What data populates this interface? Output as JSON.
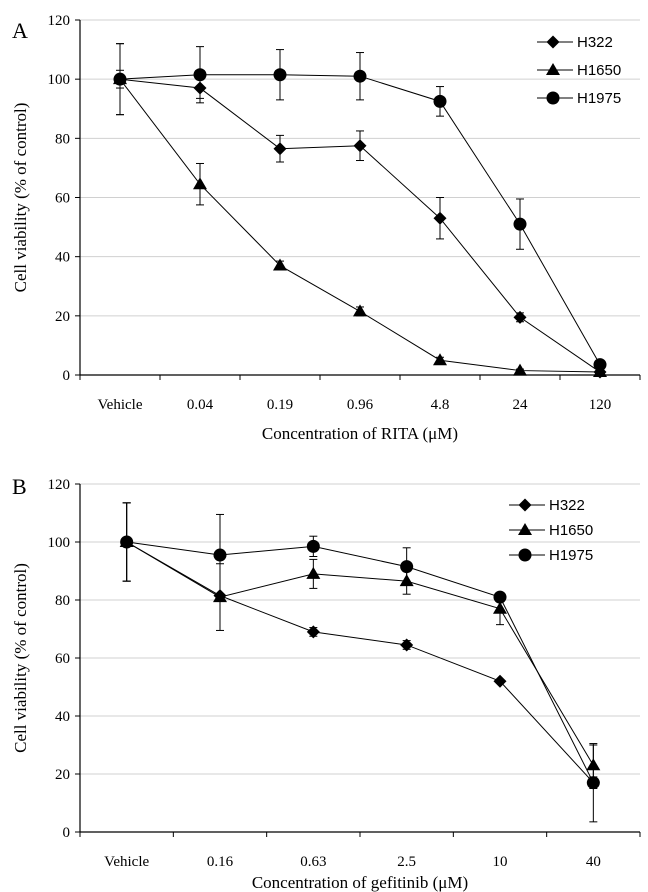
{
  "chart_data": [
    {
      "panel": "A",
      "type": "line",
      "categories": [
        "Vehicle",
        "0.04",
        "0.19",
        "0.96",
        "4.8",
        "24",
        "120"
      ],
      "xlabel": "Concentration of RITA (μM)",
      "ylabel": "Cell viability (% of control)",
      "ylim": [
        0,
        120
      ],
      "yticks": [
        0,
        20,
        40,
        60,
        80,
        100,
        120
      ],
      "grid": "horizontal",
      "legend_position": "top-right",
      "series": [
        {
          "name": "H322",
          "marker": "diamond",
          "values": [
            100,
            97,
            76.5,
            77.5,
            53,
            19.5,
            1
          ],
          "errors": [
            3,
            3.5,
            4.5,
            5,
            7,
            1.5,
            0.5
          ]
        },
        {
          "name": "H1650",
          "marker": "triangle",
          "values": [
            100,
            64.5,
            37,
            21.5,
            5,
            1.5,
            1
          ],
          "errors": [
            12,
            7,
            1.5,
            1.5,
            1,
            0.5,
            0.5
          ]
        },
        {
          "name": "H1975",
          "marker": "circle",
          "values": [
            100,
            101.5,
            101.5,
            101,
            92.5,
            51,
            3.5
          ],
          "errors": [
            12,
            9.5,
            8.5,
            8,
            5,
            8.5,
            0.5
          ]
        }
      ]
    },
    {
      "panel": "B",
      "type": "line",
      "categories": [
        "Vehicle",
        "0.16",
        "0.63",
        "2.5",
        "10",
        "40"
      ],
      "xlabel": "Concentration of gefitinib (μM)",
      "ylabel": "Cell viability (% of control)",
      "ylim": [
        0,
        120
      ],
      "yticks": [
        0,
        20,
        40,
        60,
        80,
        100,
        120
      ],
      "grid": "horizontal",
      "legend_position": "top-right",
      "series": [
        {
          "name": "H322",
          "marker": "diamond",
          "values": [
            100,
            81.5,
            69,
            64.5,
            52,
            17
          ],
          "errors": [
            13.5,
            0,
            1.5,
            1.5,
            0.5,
            2
          ]
        },
        {
          "name": "H1650",
          "marker": "triangle",
          "values": [
            100,
            81,
            89,
            86.5,
            77,
            23
          ],
          "errors": [
            13.5,
            11.5,
            5,
            4.5,
            5.5,
            7
          ]
        },
        {
          "name": "H1975",
          "marker": "circle",
          "values": [
            100,
            95.5,
            98.5,
            91.5,
            81,
            17
          ],
          "errors": [
            13.5,
            14,
            3.5,
            6.5,
            1,
            13.5
          ]
        }
      ]
    }
  ]
}
